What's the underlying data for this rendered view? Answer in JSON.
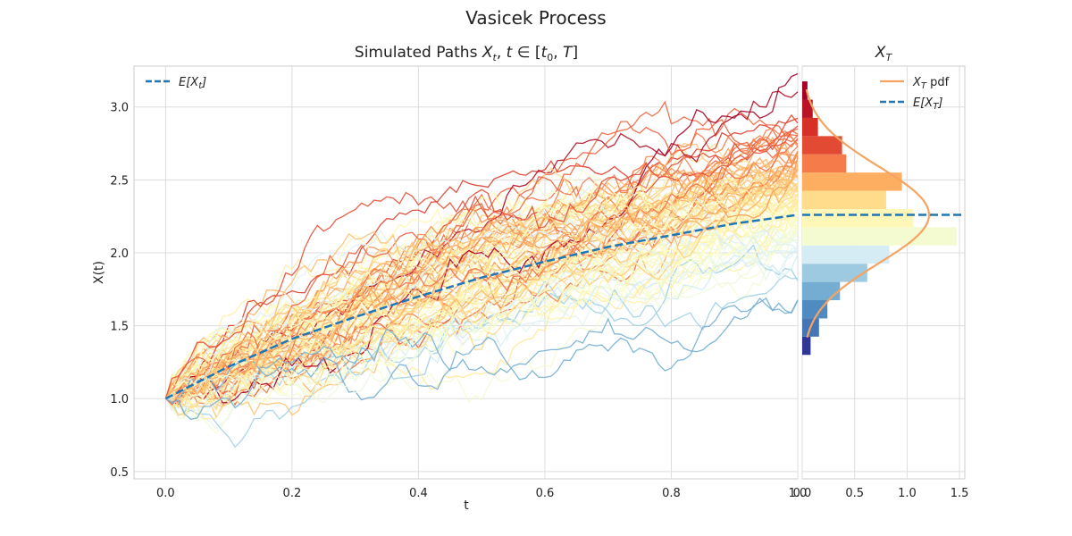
{
  "figure": {
    "suptitle": "Vasicek Process",
    "main_title_prefix": "Simulated Paths ",
    "main_title_math": "X_t, t ∈ [t_0, T]",
    "side_title": "X_T"
  },
  "chart_data": [
    {
      "type": "line",
      "title": "Simulated Paths X_t, t ∈ [t_0, T]",
      "xlabel": "t",
      "ylabel": "X(t)",
      "xlim": [
        -0.05,
        1.0
      ],
      "ylim": [
        0.45,
        3.28
      ],
      "xticks": [
        "0.0",
        "0.2",
        "0.4",
        "0.6",
        "0.8",
        "1.0"
      ],
      "xtick_values": [
        0.0,
        0.2,
        0.4,
        0.6,
        0.8,
        1.0
      ],
      "yticks": [
        "0.5",
        "1.0",
        "1.5",
        "2.0",
        "2.5",
        "3.0"
      ],
      "ytick_values": [
        0.5,
        1.0,
        1.5,
        2.0,
        2.5,
        3.0
      ],
      "grid": true,
      "legend_placement": "top-left",
      "x0": 1.0,
      "expected_path": {
        "name": "E[X_t]",
        "color": "#1f77b4",
        "style": "dashed",
        "x": [
          0.0,
          0.1,
          0.2,
          0.3,
          0.4,
          0.5,
          0.6,
          0.7,
          0.8,
          0.9,
          1.0
        ],
        "y": [
          1.0,
          1.22,
          1.41,
          1.56,
          1.7,
          1.83,
          1.94,
          2.04,
          2.12,
          2.2,
          2.26
        ]
      },
      "path_count": 100,
      "path_colormap": "RdYlBu_r",
      "paths_summary": {
        "terminal_min": 1.3,
        "terminal_max": 3.15
      }
    },
    {
      "type": "bar",
      "orientation": "horizontal",
      "title": "X_T",
      "xlim": [
        0.0,
        1.55
      ],
      "xticks": [
        "0.0",
        "0.5",
        "1.0",
        "1.5"
      ],
      "xtick_values": [
        0.0,
        0.5,
        1.0,
        1.5
      ],
      "ylim": [
        0.45,
        3.28
      ],
      "grid": true,
      "legend_placement": "top-right",
      "legend": [
        "X_T pdf",
        "E[X_T]"
      ],
      "histogram": {
        "bin_edges": [
          1.3,
          1.425,
          1.55,
          1.675,
          1.8,
          1.925,
          2.05,
          2.175,
          2.3,
          2.425,
          2.55,
          2.675,
          2.8,
          2.925,
          3.05,
          3.175
        ],
        "densities": [
          0.08,
          0.16,
          0.24,
          0.36,
          0.62,
          0.83,
          1.47,
          1.06,
          0.8,
          0.95,
          0.42,
          0.38,
          0.15,
          0.1,
          0.05
        ],
        "colors": [
          "#313695",
          "#4575b4",
          "#4f8bc1",
          "#74add1",
          "#9dcae1",
          "#d6ecf5",
          "#f5fbd0",
          "#fff7b8",
          "#fedc8c",
          "#fdae61",
          "#f67b4a",
          "#e34a33",
          "#d73027",
          "#b91326",
          "#a50026"
        ]
      },
      "pdf": {
        "name": "X_T pdf",
        "color": "#f4a460",
        "mean": 2.26,
        "std": 0.33,
        "y_range": [
          1.42,
          3.12
        ]
      },
      "mean_line": {
        "name": "E[X_T]",
        "value": 2.26,
        "color": "#1f77b4",
        "style": "dashed"
      }
    }
  ]
}
